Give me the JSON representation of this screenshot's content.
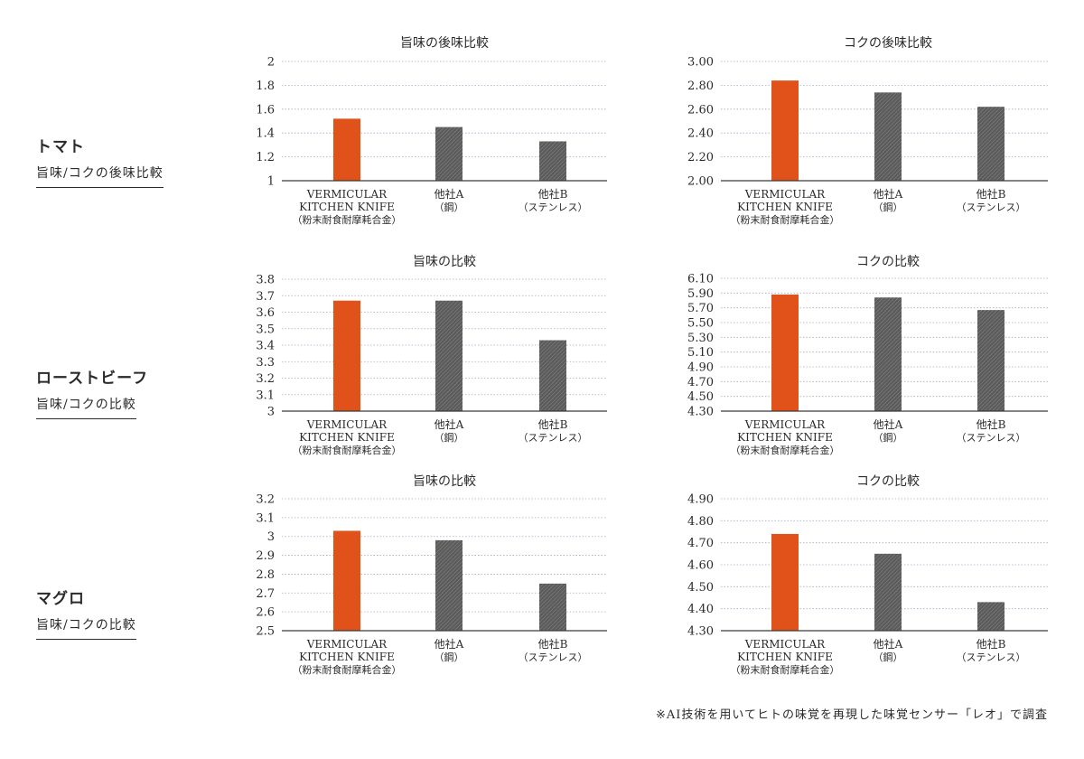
{
  "rows": [
    {
      "title": "トマト",
      "subtitle": "旨味/コクの後味比較"
    },
    {
      "title": "ローストビーフ",
      "subtitle": "旨味/コクの比較"
    },
    {
      "title": "マグロ",
      "subtitle": "旨味/コクの比較"
    }
  ],
  "categories": [
    [
      "VERMICULAR",
      "KITCHEN KNIFE",
      "（粉末耐食耐摩耗合金）"
    ],
    [
      "他社A",
      "（鋼）"
    ],
    [
      "他社B",
      "（ステンレス）"
    ]
  ],
  "colors": {
    "highlight": "#e0521a",
    "other": "#5b5b5b",
    "grid": "#a9a9c9"
  },
  "chart_data": [
    {
      "type": "bar",
      "title": "旨味の後味比較",
      "values": [
        1.52,
        1.45,
        1.33
      ],
      "ylim": [
        1,
        2
      ],
      "ticks": [
        "1",
        "1.2",
        "1.4",
        "1.6",
        "1.8",
        "2"
      ]
    },
    {
      "type": "bar",
      "title": "コクの後味比較",
      "values": [
        2.84,
        2.74,
        2.62
      ],
      "ylim": [
        2.0,
        3.0
      ],
      "ticks": [
        "2.00",
        "2.20",
        "2.40",
        "2.60",
        "2.80",
        "3.00"
      ]
    },
    {
      "type": "bar",
      "title": "旨味の比較",
      "values": [
        3.67,
        3.67,
        3.43
      ],
      "ylim": [
        3,
        3.8
      ],
      "ticks": [
        "3",
        "3.1",
        "3.2",
        "3.3",
        "3.4",
        "3.5",
        "3.6",
        "3.7",
        "3.8"
      ]
    },
    {
      "type": "bar",
      "title": "コクの比較",
      "values": [
        5.88,
        5.84,
        5.67
      ],
      "ylim": [
        4.3,
        6.1
      ],
      "ticks": [
        "4.30",
        "4.50",
        "4.70",
        "4.90",
        "5.10",
        "5.30",
        "5.50",
        "5.70",
        "5.90",
        "6.10"
      ]
    },
    {
      "type": "bar",
      "title": "旨味の比較",
      "values": [
        3.03,
        2.98,
        2.75
      ],
      "ylim": [
        2.5,
        3.2
      ],
      "ticks": [
        "2.5",
        "2.6",
        "2.7",
        "2.8",
        "2.9",
        "3",
        "3.1",
        "3.2"
      ]
    },
    {
      "type": "bar",
      "title": "コクの比較",
      "values": [
        4.74,
        4.65,
        4.43
      ],
      "ylim": [
        4.3,
        4.9
      ],
      "ticks": [
        "4.30",
        "4.40",
        "4.50",
        "4.60",
        "4.70",
        "4.80",
        "4.90"
      ]
    }
  ],
  "footnote": "※AI技術を用いてヒトの味覚を再現した味覚センサー「レオ」で調査"
}
